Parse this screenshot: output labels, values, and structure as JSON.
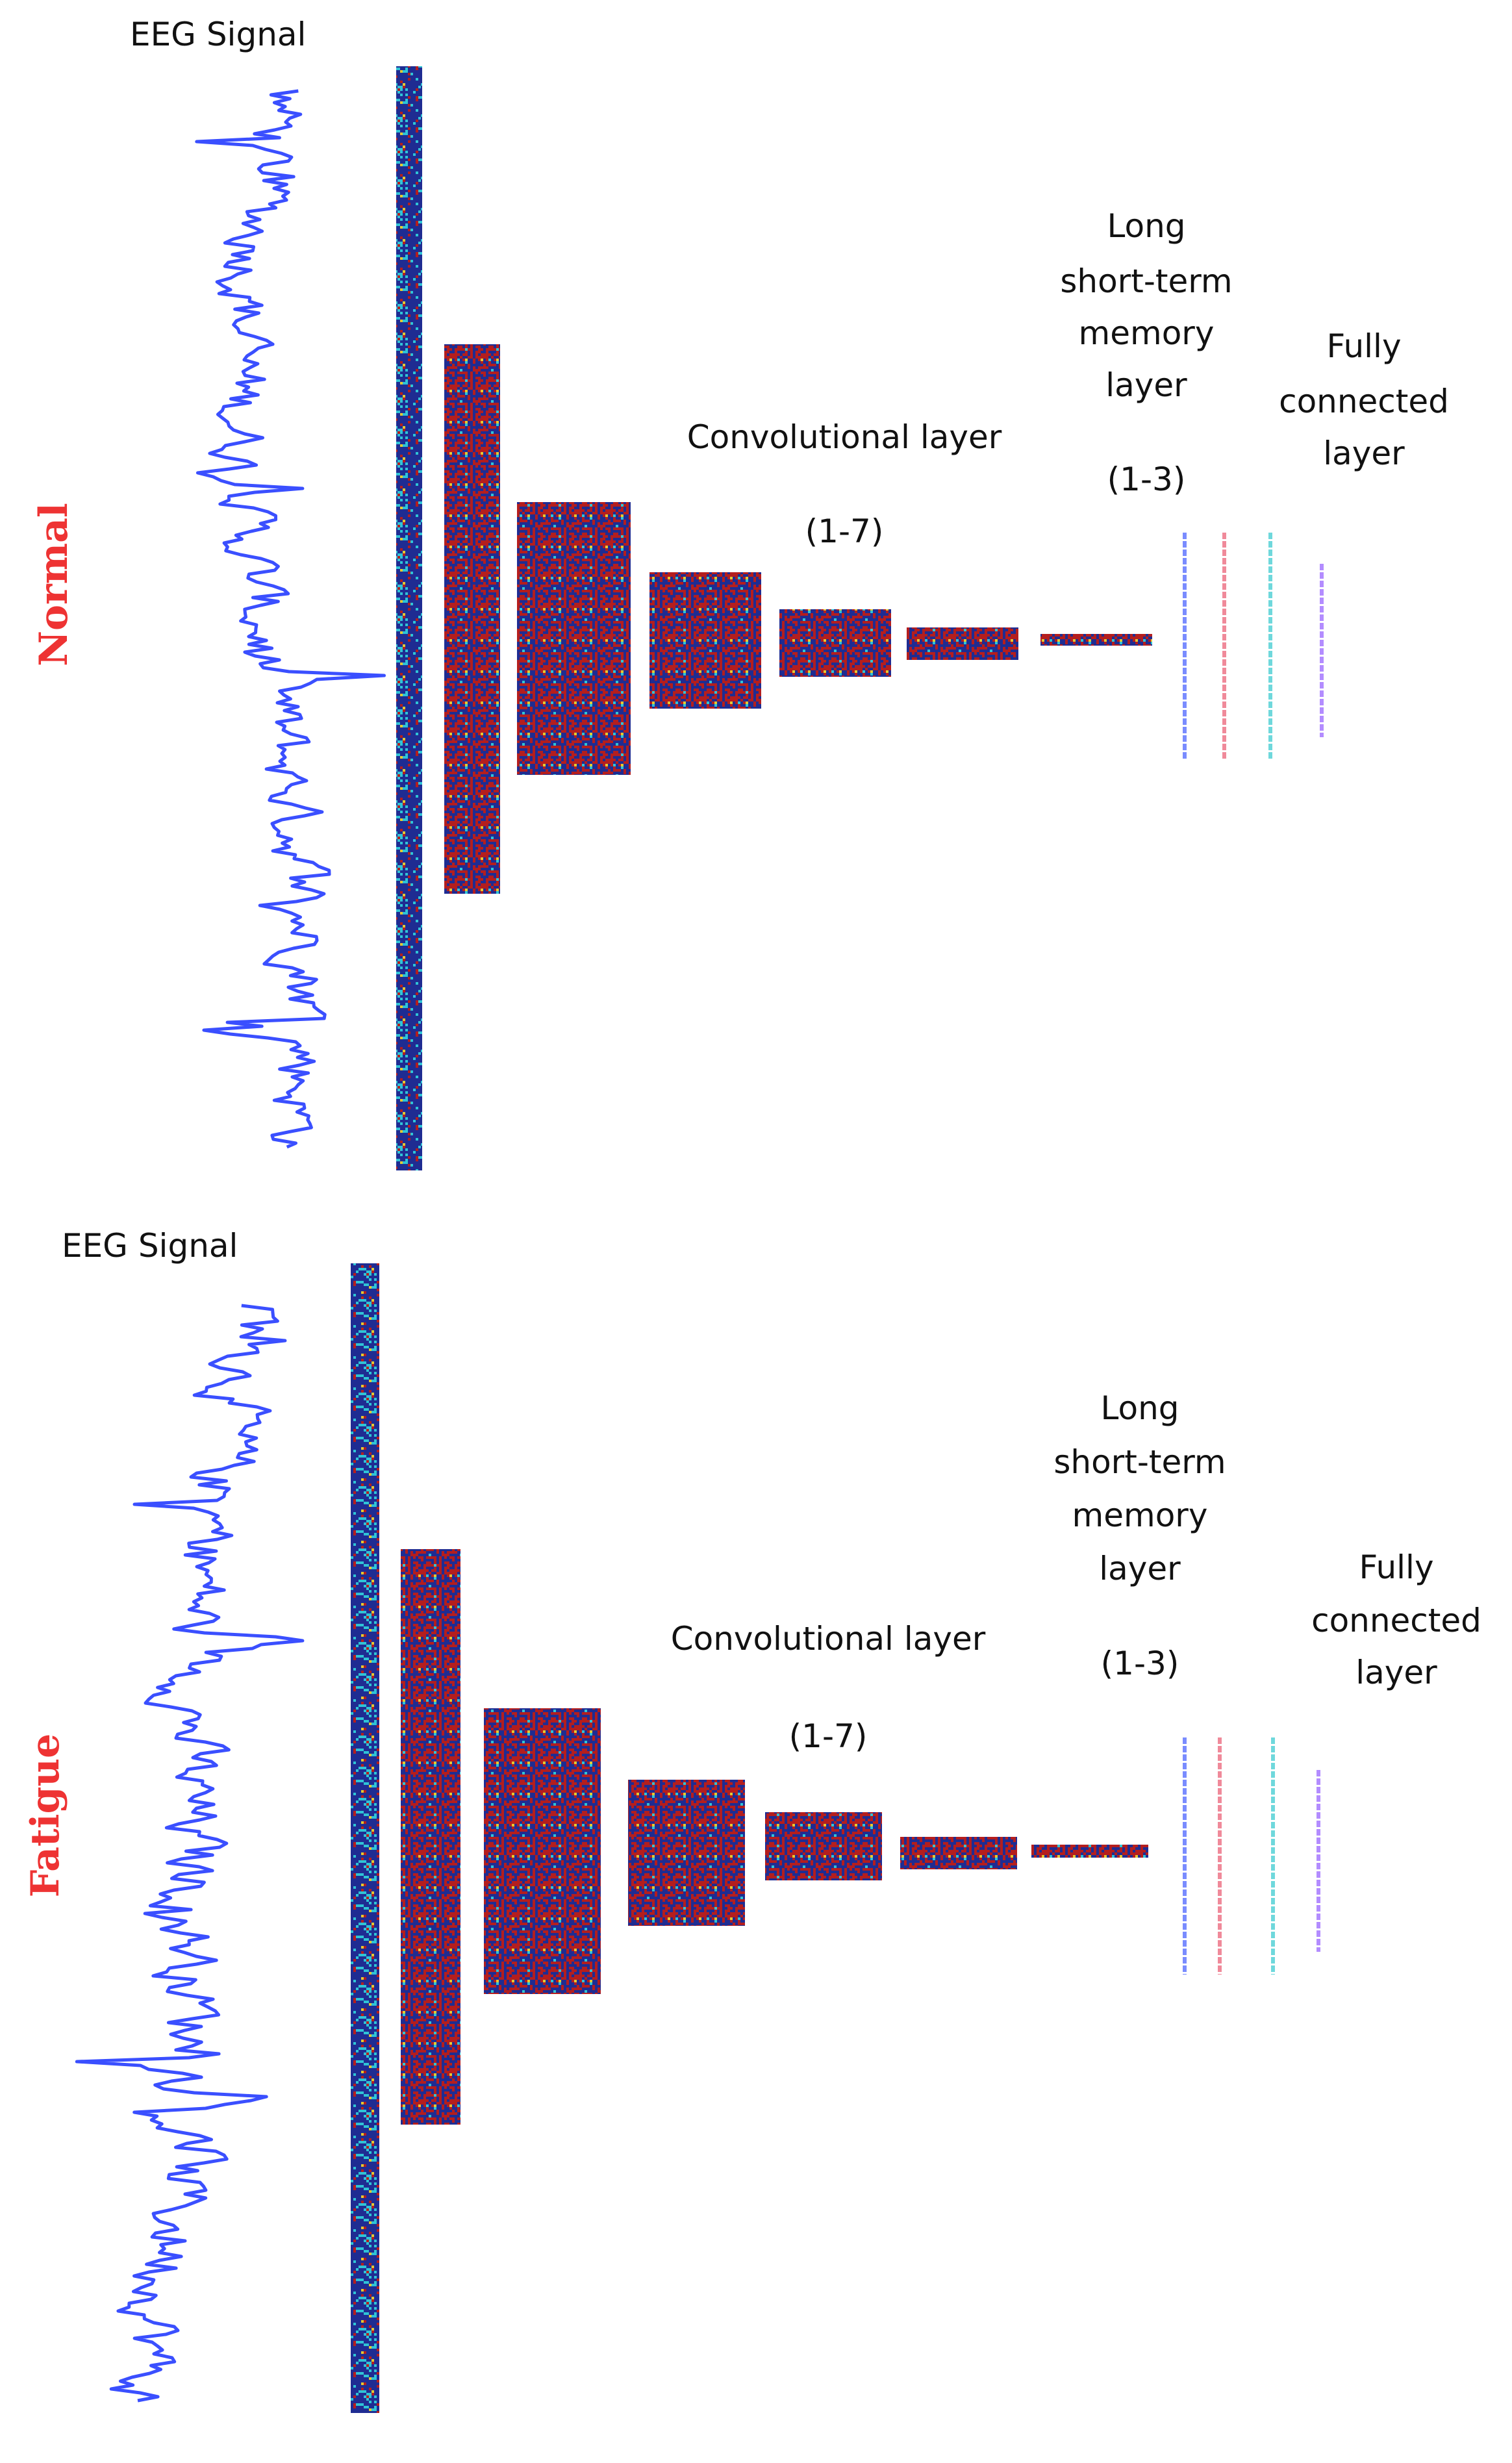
{
  "colors": {
    "signal": "#3a4fff",
    "map_bg": "#1f2c92",
    "map_red": "#b41e1e",
    "map_cyan": "#2fc4d6",
    "map_yellow": "#e3c932",
    "side_label": "#ee3333",
    "fc_colors": [
      "#7a8cff",
      "#f08a9a",
      "#6fd8dc",
      "#b38cff"
    ]
  },
  "panels": [
    {
      "side_label": "Normal",
      "signal_label": "EEG Signal",
      "conv_label": "Convolutional layer",
      "conv_range": "(1-7)",
      "lstm_label": [
        "Long",
        "short-term",
        "memory",
        "layer"
      ],
      "lstm_range": "(1-3)",
      "fc_label": [
        "Fully",
        "connected",
        "layer"
      ]
    },
    {
      "side_label": "Fatigue",
      "signal_label": "EEG Signal",
      "conv_label": "Convolutional layer",
      "conv_range": "(1-7)",
      "lstm_label": [
        "Long",
        "short-term",
        "memory",
        "layer"
      ],
      "lstm_range": "(1-3)",
      "fc_label": [
        "Fully",
        "connected",
        "layer"
      ]
    }
  ]
}
